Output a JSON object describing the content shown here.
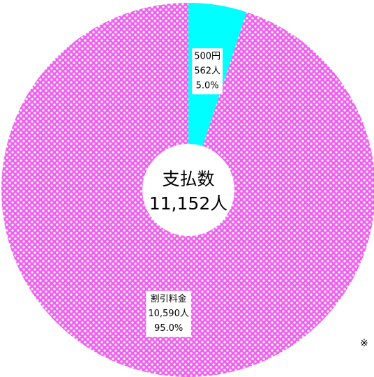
{
  "chart_data": {
    "type": "donut",
    "categories": [
      "500円",
      "割引料金"
    ],
    "values": [
      562,
      10590
    ],
    "value_labels": [
      "562人",
      "10,590人"
    ],
    "percent_labels": [
      "5.0%",
      "95.0%"
    ],
    "colors": [
      "#00ffff",
      "#f060f0"
    ],
    "center_title": "支払数",
    "center_total": "11,152人",
    "note": "※"
  }
}
